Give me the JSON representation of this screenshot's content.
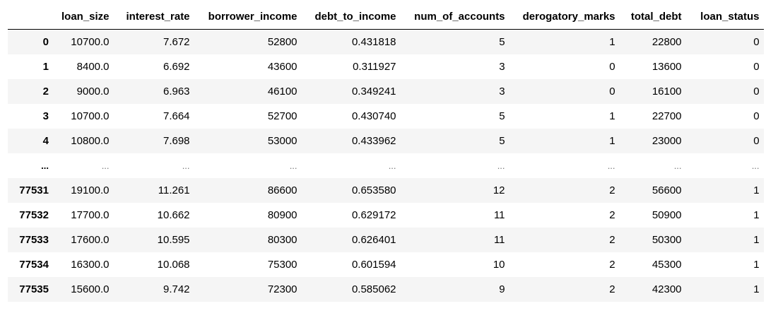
{
  "columns": [
    "loan_size",
    "interest_rate",
    "borrower_income",
    "debt_to_income",
    "num_of_accounts",
    "derogatory_marks",
    "total_debt",
    "loan_status"
  ],
  "rows": [
    {
      "index": "0",
      "cells": [
        "10700.0",
        "7.672",
        "52800",
        "0.431818",
        "5",
        "1",
        "22800",
        "0"
      ]
    },
    {
      "index": "1",
      "cells": [
        "8400.0",
        "6.692",
        "43600",
        "0.311927",
        "3",
        "0",
        "13600",
        "0"
      ]
    },
    {
      "index": "2",
      "cells": [
        "9000.0",
        "6.963",
        "46100",
        "0.349241",
        "3",
        "0",
        "16100",
        "0"
      ]
    },
    {
      "index": "3",
      "cells": [
        "10700.0",
        "7.664",
        "52700",
        "0.430740",
        "5",
        "1",
        "22700",
        "0"
      ]
    },
    {
      "index": "4",
      "cells": [
        "10800.0",
        "7.698",
        "53000",
        "0.433962",
        "5",
        "1",
        "23000",
        "0"
      ]
    },
    {
      "index": "...",
      "cells": [
        "...",
        "...",
        "...",
        "...",
        "...",
        "...",
        "...",
        "..."
      ]
    },
    {
      "index": "77531",
      "cells": [
        "19100.0",
        "11.261",
        "86600",
        "0.653580",
        "12",
        "2",
        "56600",
        "1"
      ]
    },
    {
      "index": "77532",
      "cells": [
        "17700.0",
        "10.662",
        "80900",
        "0.629172",
        "11",
        "2",
        "50900",
        "1"
      ]
    },
    {
      "index": "77533",
      "cells": [
        "17600.0",
        "10.595",
        "80300",
        "0.626401",
        "11",
        "2",
        "50300",
        "1"
      ]
    },
    {
      "index": "77534",
      "cells": [
        "16300.0",
        "10.068",
        "75300",
        "0.601594",
        "10",
        "2",
        "45300",
        "1"
      ]
    },
    {
      "index": "77535",
      "cells": [
        "15600.0",
        "9.742",
        "72300",
        "0.585062",
        "9",
        "2",
        "42300",
        "1"
      ]
    }
  ]
}
